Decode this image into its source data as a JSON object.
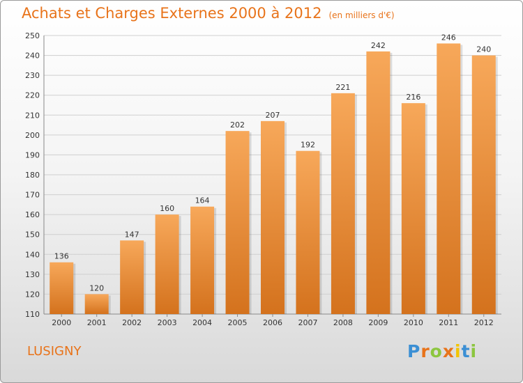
{
  "chart_data": {
    "type": "bar",
    "title": "Achats et Charges Externes 2000 à 2012",
    "subtitle": "(en milliers d'€)",
    "categories": [
      "2000",
      "2001",
      "2002",
      "2003",
      "2004",
      "2005",
      "2006",
      "2007",
      "2008",
      "2009",
      "2010",
      "2011",
      "2012"
    ],
    "values": [
      136,
      120,
      147,
      160,
      164,
      202,
      207,
      192,
      221,
      242,
      216,
      246,
      240
    ],
    "ylim": [
      110,
      250
    ],
    "yticks": [
      110,
      120,
      130,
      140,
      150,
      160,
      170,
      180,
      190,
      200,
      210,
      220,
      230,
      240,
      250
    ],
    "grid": true,
    "bar_color_top": "#f7a85a",
    "bar_color_bottom": "#d4721d"
  },
  "place_name": "LUSIGNY",
  "logo": {
    "letters": [
      "P",
      "r",
      "o",
      "x",
      "i",
      "t",
      "i"
    ],
    "colors": [
      "#3b8fd4",
      "#e8731a",
      "#8cc63f",
      "#e8731a",
      "#f2c500",
      "#3b8fd4",
      "#8cc63f"
    ]
  }
}
